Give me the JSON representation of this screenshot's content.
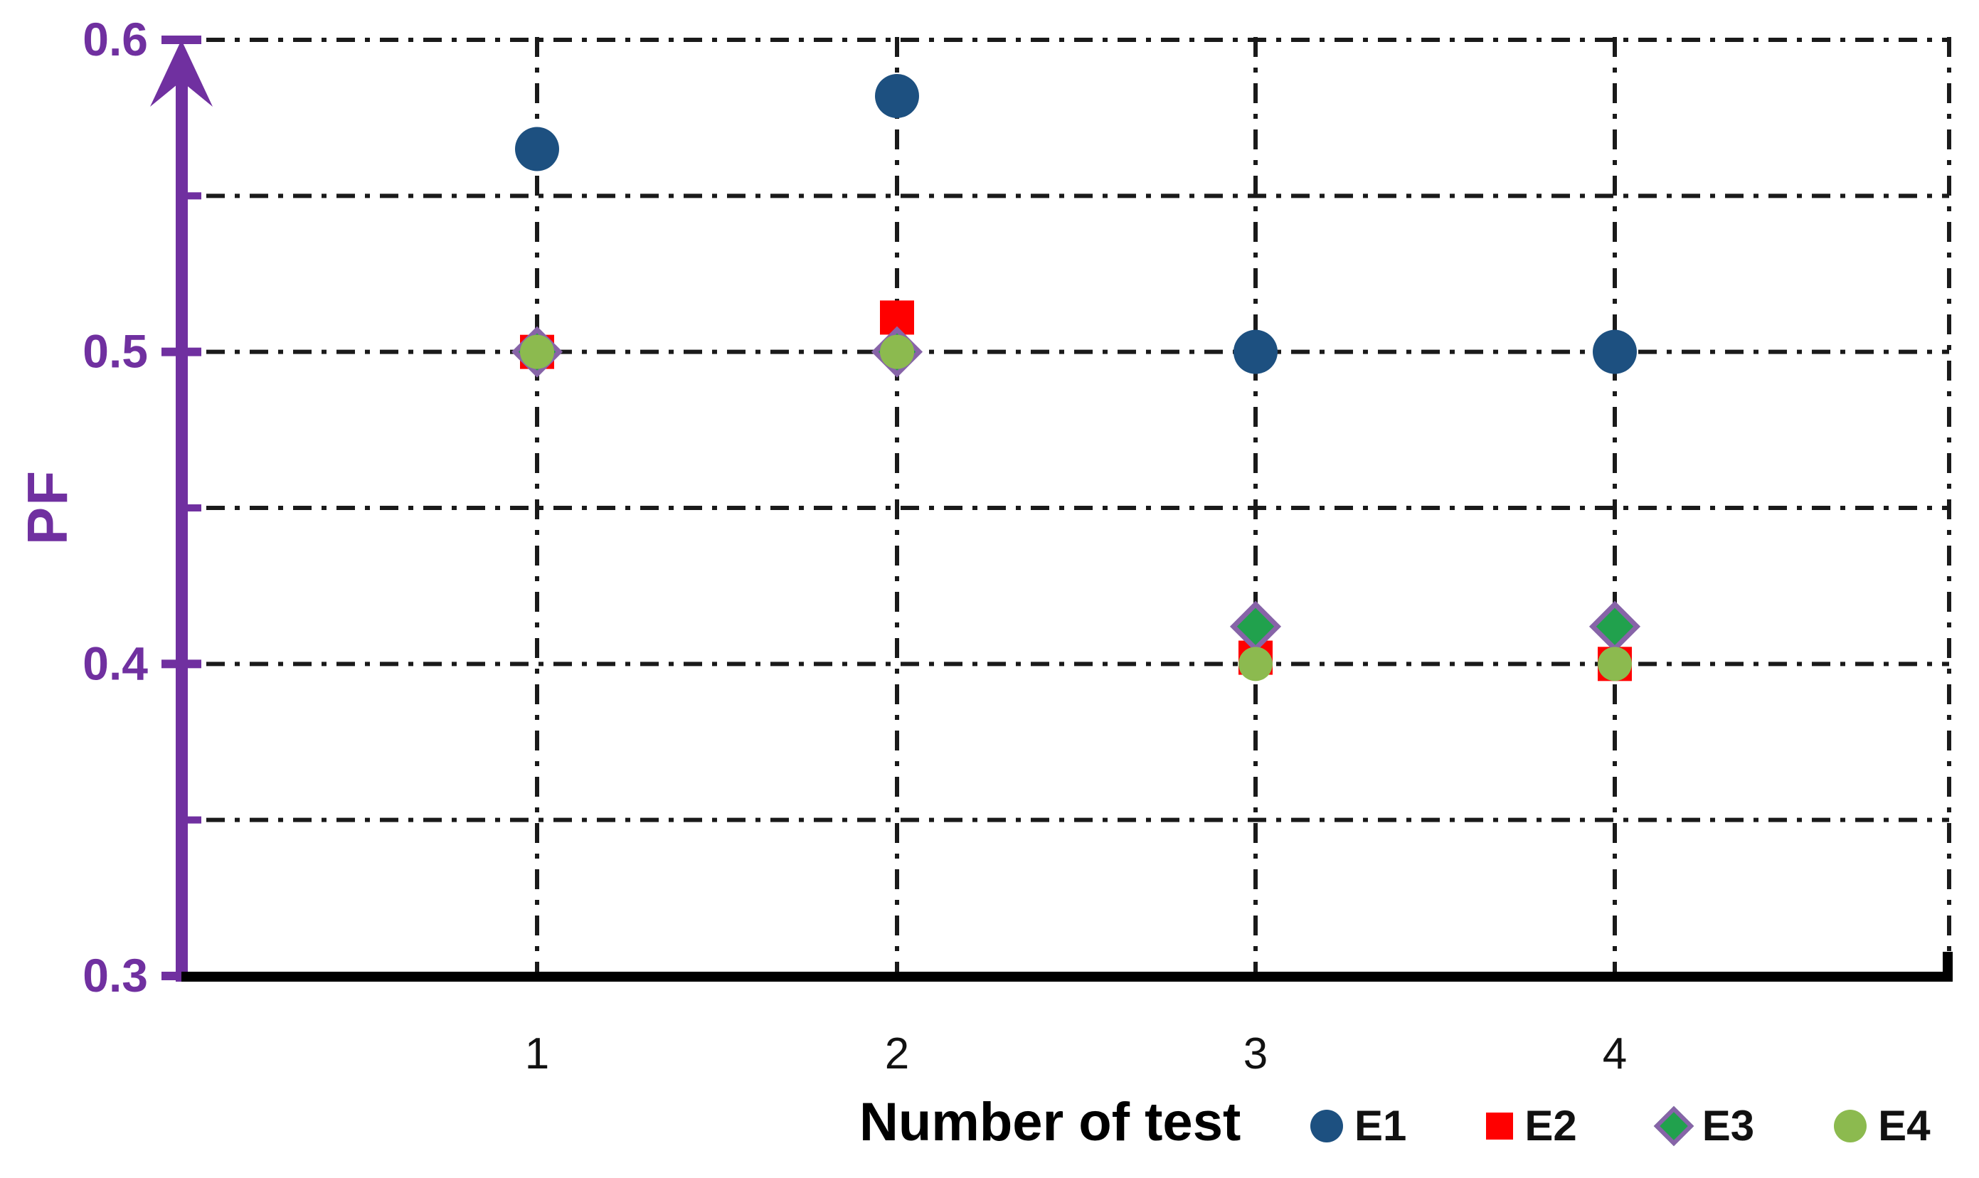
{
  "chart_data": {
    "type": "scatter",
    "title": "",
    "xlabel": "Number of test",
    "ylabel": "PF",
    "x": [
      1,
      2,
      3,
      4
    ],
    "xtick_labels": [
      "1",
      "2",
      "3",
      "4"
    ],
    "ytick_labels": [
      "0.6",
      "0.5",
      "0.4",
      "0.3"
    ],
    "ytick_values": [
      0.6,
      0.5,
      0.4,
      0.3
    ],
    "minor_ytick_values": [
      0.55,
      0.45,
      0.35
    ],
    "ylim": [
      0.3,
      0.6
    ],
    "gridline_values": [
      0.6,
      0.55,
      0.5,
      0.45,
      0.4,
      0.35
    ],
    "grid_style": "dash-dot",
    "grid_on": true,
    "legend_position": "bottom-right",
    "series": [
      {
        "name": "E1",
        "marker": "circle",
        "color": "#1D5080",
        "values": [
          0.565,
          0.582,
          0.5,
          0.5
        ]
      },
      {
        "name": "E2",
        "marker": "square",
        "color": "#FF0000",
        "values": [
          0.5,
          0.511,
          0.402,
          0.4
        ]
      },
      {
        "name": "E3",
        "marker": "diamond",
        "color": "#21A14D",
        "outline": "#8764A8",
        "values": [
          0.5,
          0.5,
          0.412,
          0.412
        ]
      },
      {
        "name": "E4",
        "marker": "circle",
        "color": "#8CBA4F",
        "values": [
          0.5,
          0.5,
          0.4,
          0.4
        ]
      }
    ],
    "axis_colors": {
      "y_axis": "#7030A0",
      "x_axis": "#000000",
      "grid": "#1A1A1A",
      "tick_label_y": "#7030A0",
      "tick_label_x": "#111111"
    }
  }
}
